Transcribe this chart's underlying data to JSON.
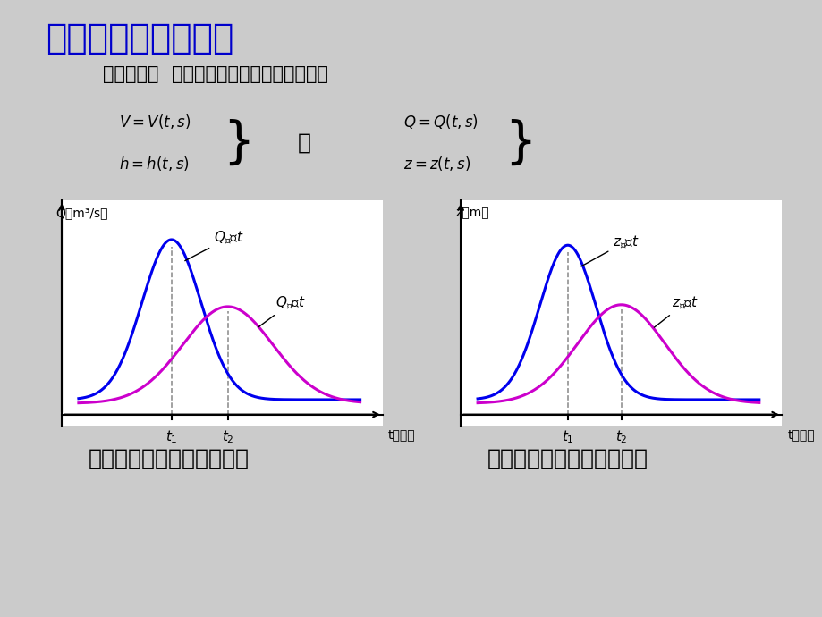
{
  "title": "明渠非恒定流的特性",
  "title_color": "#0000CC",
  "title_fontsize": 28,
  "highlight_text": "特性之一：  明渠非恒定流必定是非均匀流。",
  "highlight_bg": "#FFB3FF",
  "highlight_fontsize": 15,
  "formula_or": "或",
  "blue_color": "#0000EE",
  "magenta_color": "#CC00CC",
  "page_bg": "#CBCBCB",
  "left_caption": "上、下游断面的流量过程线",
  "right_caption": "上、下游断面的水位过程线",
  "caption_fontsize": 18,
  "left_ylabel": "Q（m³/s）",
  "right_ylabel": "z（m）",
  "t_label": "t（时）",
  "t1_label": "$t_1$",
  "t2_label": "$t_2$"
}
